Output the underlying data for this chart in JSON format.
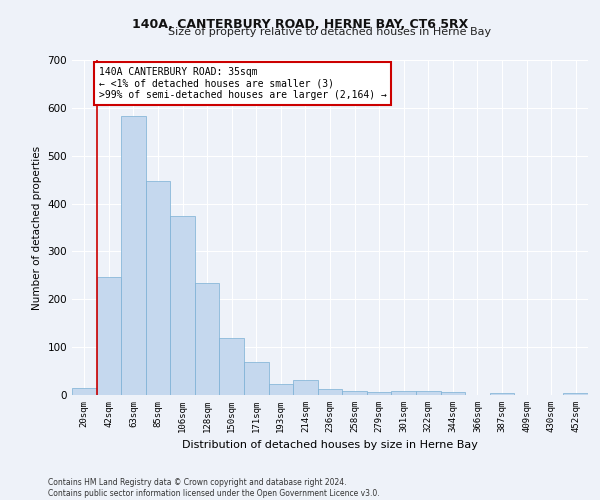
{
  "title": "140A, CANTERBURY ROAD, HERNE BAY, CT6 5RX",
  "subtitle": "Size of property relative to detached houses in Herne Bay",
  "xlabel": "Distribution of detached houses by size in Herne Bay",
  "ylabel": "Number of detached properties",
  "bar_color": "#c5d8ee",
  "bar_edge_color": "#7aafd4",
  "background_color": "#eef2f9",
  "grid_color": "#ffffff",
  "categories": [
    "20sqm",
    "42sqm",
    "63sqm",
    "85sqm",
    "106sqm",
    "128sqm",
    "150sqm",
    "171sqm",
    "193sqm",
    "214sqm",
    "236sqm",
    "258sqm",
    "279sqm",
    "301sqm",
    "322sqm",
    "344sqm",
    "366sqm",
    "387sqm",
    "409sqm",
    "430sqm",
    "452sqm"
  ],
  "values": [
    15,
    247,
    584,
    448,
    373,
    234,
    120,
    68,
    24,
    31,
    13,
    8,
    7,
    9,
    8,
    7,
    0,
    5,
    0,
    0,
    5
  ],
  "ylim": [
    0,
    700
  ],
  "yticks": [
    0,
    100,
    200,
    300,
    400,
    500,
    600,
    700
  ],
  "annotation_text_line1": "140A CANTERBURY ROAD: 35sqm",
  "annotation_text_line2": "← <1% of detached houses are smaller (3)",
  "annotation_text_line3": ">99% of semi-detached houses are larger (2,164) →",
  "annotation_box_facecolor": "#ffffff",
  "annotation_box_edgecolor": "#cc0000",
  "vline_color": "#cc0000",
  "vline_x": 0.5,
  "footer_line1": "Contains HM Land Registry data © Crown copyright and database right 2024.",
  "footer_line2": "Contains public sector information licensed under the Open Government Licence v3.0.",
  "title_fontsize": 9,
  "subtitle_fontsize": 8,
  "xlabel_fontsize": 8,
  "ylabel_fontsize": 7.5,
  "xtick_fontsize": 6.5,
  "ytick_fontsize": 7.5,
  "annotation_fontsize": 7,
  "footer_fontsize": 5.5
}
